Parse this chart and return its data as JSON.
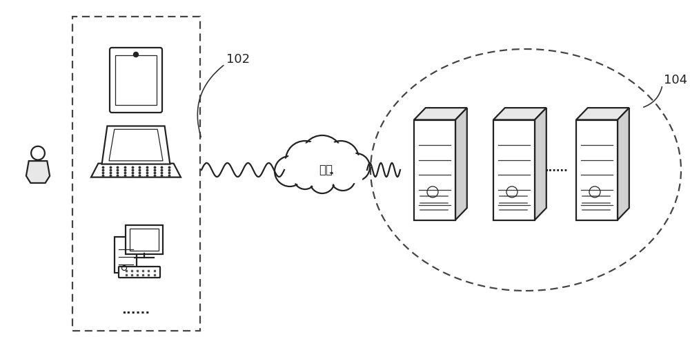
{
  "bg_color": "#ffffff",
  "line_color": "#222222",
  "label_102": "102",
  "label_104": "104",
  "network_label": "网络",
  "dots": "......",
  "fig_w": 10.0,
  "fig_h": 5.01
}
